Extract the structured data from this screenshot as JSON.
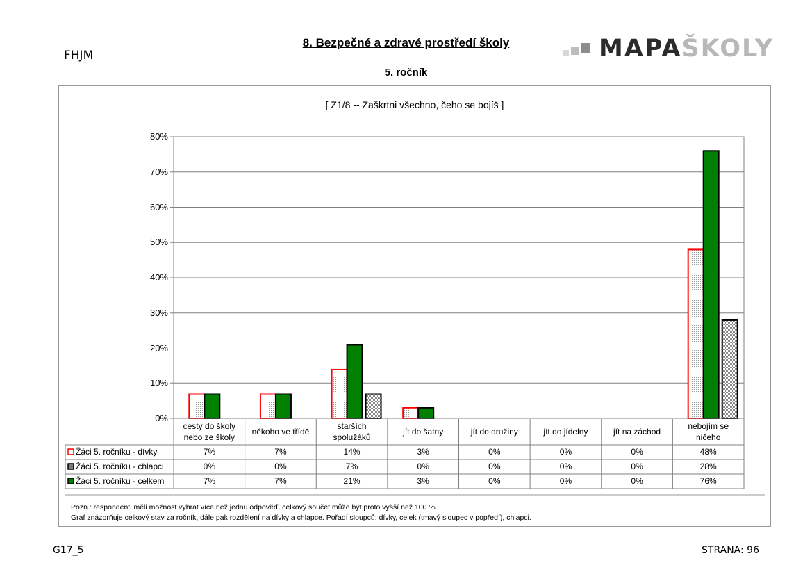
{
  "header": {
    "code": "FHJM",
    "title": "8. Bezpečné a zdravé prostředí školy",
    "subtitle": "5. ročník",
    "logo_part1": "MAPA",
    "logo_part2": "ŠKOLY"
  },
  "chart_data": {
    "type": "bar",
    "title": "[ Z1/8 -- Zaškrtni všechno, čeho se bojíš ]",
    "categories": [
      "cesty do školy nebo ze školy",
      "někoho ve třídě",
      "starších spolužáků",
      "jít do šatny",
      "jít do družiny",
      "jít do jídelny",
      "jít na záchod",
      "nebojím se ničeho"
    ],
    "category_lines": [
      [
        "cesty do školy",
        "nebo ze školy"
      ],
      [
        "někoho ve třídě"
      ],
      [
        "starších",
        "spolužáků"
      ],
      [
        "jít do šatny"
      ],
      [
        "jít do družiny"
      ],
      [
        "jít do jídelny"
      ],
      [
        "jít na záchod"
      ],
      [
        "nebojím se",
        "ničeho"
      ]
    ],
    "y_ticks": [
      "0%",
      "10%",
      "20%",
      "30%",
      "40%",
      "50%",
      "60%",
      "70%",
      "80%"
    ],
    "ylim": [
      0,
      80
    ],
    "grid": true,
    "series": [
      {
        "name": "Žáci 5. ročníku - dívky",
        "values": [
          7,
          7,
          14,
          3,
          0,
          0,
          0,
          48
        ],
        "labels": [
          "7%",
          "7%",
          "14%",
          "3%",
          "0%",
          "0%",
          "0%",
          "48%"
        ],
        "color": "#ff0000",
        "fill": "dotted-white"
      },
      {
        "name": "Žáci 5. ročníku - chlapci",
        "values": [
          0,
          0,
          7,
          0,
          0,
          0,
          0,
          28
        ],
        "labels": [
          "0%",
          "0%",
          "7%",
          "0%",
          "0%",
          "0%",
          "0%",
          "28%"
        ],
        "color": "#000000",
        "fill": "dotted-gray"
      },
      {
        "name": "Žáci 5. ročníku - celkem",
        "values": [
          7,
          7,
          21,
          3,
          0,
          0,
          0,
          76
        ],
        "labels": [
          "7%",
          "7%",
          "21%",
          "3%",
          "0%",
          "0%",
          "0%",
          "76%"
        ],
        "color": "#008000",
        "fill": "solid-green"
      }
    ]
  },
  "notes": {
    "line1": "Pozn.: respondenti měli možnost vybrat  více než jednu odpověď, celkový součet může být proto vyšší než 100 %.",
    "line2": "Graf znázorňuje celkový stav za ročník, dále pak rozdělení na dívky a chlapce. Pořadí sloupců: dívky, celek (tmavý sloupec v popředí), chlapci."
  },
  "footer": {
    "left": "G17_5",
    "right": "STRANA: 96"
  }
}
